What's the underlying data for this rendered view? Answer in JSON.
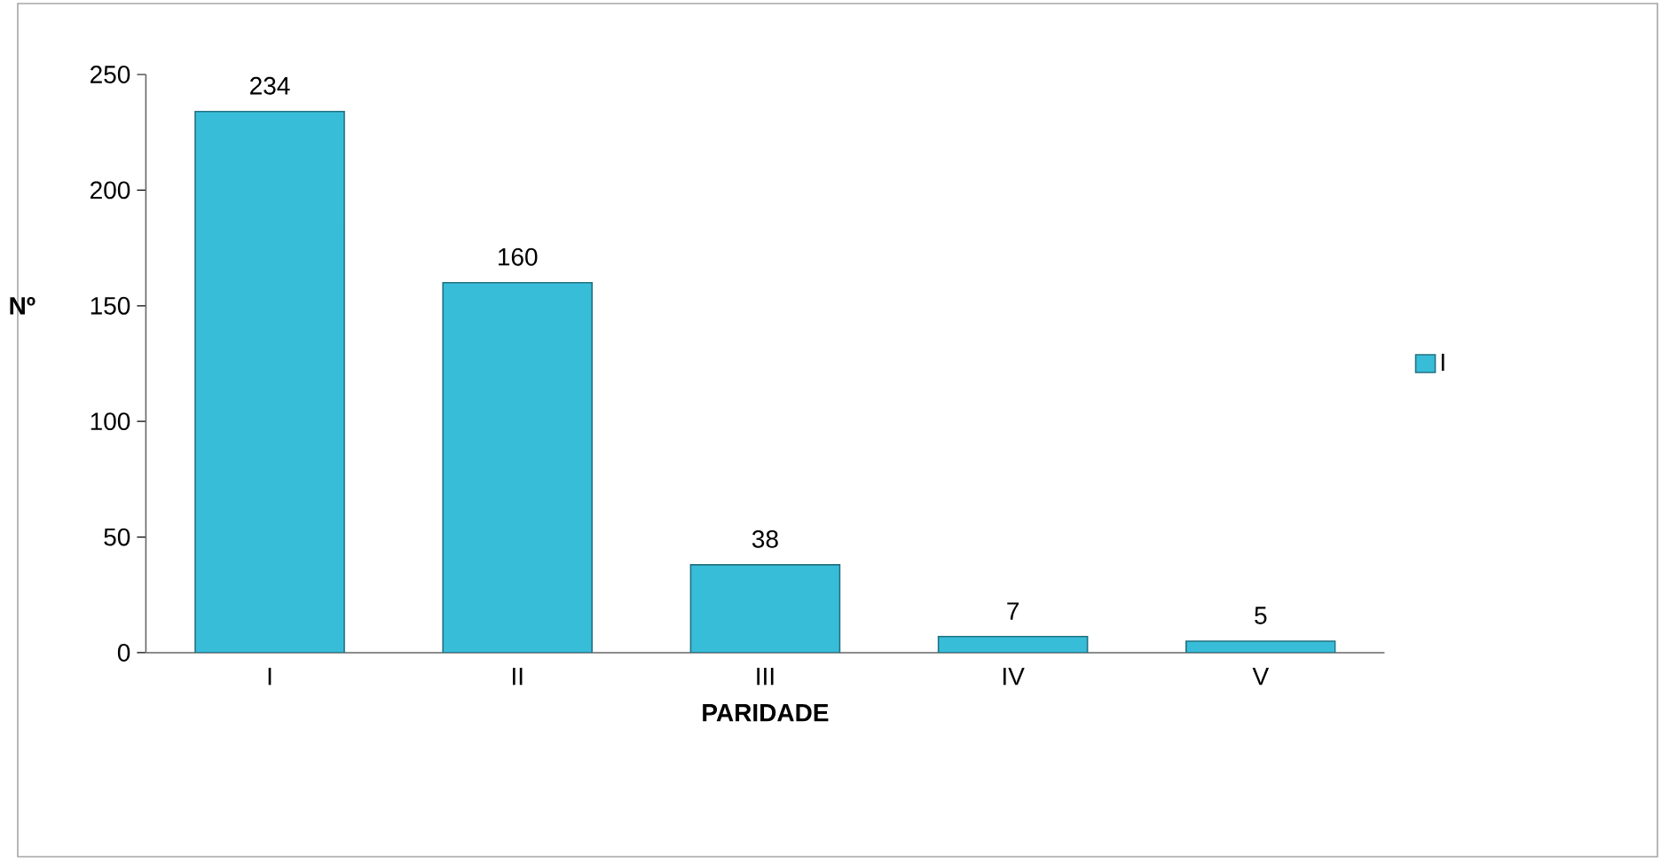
{
  "chart_data": {
    "type": "bar",
    "xlabel": "PARIDADE",
    "ylabel": "Nº",
    "categories": [
      "I",
      "II",
      "III",
      "IV",
      "V"
    ],
    "series": [
      {
        "name": "I",
        "color": "#38bdd9",
        "values": [
          234,
          160,
          38,
          7,
          5
        ]
      }
    ],
    "ylim": [
      0,
      250
    ],
    "yticks": [
      0,
      50,
      100,
      150,
      200,
      250
    ],
    "data_labels": true,
    "legend": "right",
    "grid": false
  }
}
